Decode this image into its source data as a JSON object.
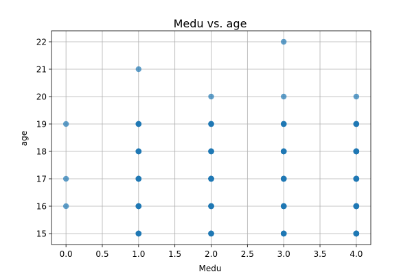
{
  "chart_data": {
    "type": "scatter",
    "title": "Medu vs. age",
    "xlabel": "Medu",
    "ylabel": "age",
    "xlim": [
      -0.2,
      4.2
    ],
    "ylim": [
      14.6,
      22.4
    ],
    "xticks": [
      0.0,
      0.5,
      1.0,
      1.5,
      2.0,
      2.5,
      3.0,
      3.5,
      4.0
    ],
    "xtick_labels": [
      "0.0",
      "0.5",
      "1.0",
      "1.5",
      "2.0",
      "2.5",
      "3.0",
      "3.5",
      "4.0"
    ],
    "yticks": [
      15,
      16,
      17,
      18,
      19,
      20,
      21,
      22
    ],
    "ytick_labels": [
      "15",
      "16",
      "17",
      "18",
      "19",
      "20",
      "21",
      "22"
    ],
    "grid": true,
    "marker_color": "#1f77b4",
    "marker_alpha": 0.7,
    "points": [
      {
        "x": 0,
        "y": 16,
        "n": 1
      },
      {
        "x": 0,
        "y": 17,
        "n": 1
      },
      {
        "x": 0,
        "y": 19,
        "n": 1
      },
      {
        "x": 1,
        "y": 15,
        "n": 8
      },
      {
        "x": 1,
        "y": 16,
        "n": 10
      },
      {
        "x": 1,
        "y": 17,
        "n": 10
      },
      {
        "x": 1,
        "y": 18,
        "n": 10
      },
      {
        "x": 1,
        "y": 19,
        "n": 6
      },
      {
        "x": 1,
        "y": 21,
        "n": 1
      },
      {
        "x": 2,
        "y": 15,
        "n": 10
      },
      {
        "x": 2,
        "y": 16,
        "n": 12
      },
      {
        "x": 2,
        "y": 17,
        "n": 12
      },
      {
        "x": 2,
        "y": 18,
        "n": 10
      },
      {
        "x": 2,
        "y": 19,
        "n": 6
      },
      {
        "x": 2,
        "y": 20,
        "n": 1
      },
      {
        "x": 3,
        "y": 15,
        "n": 10
      },
      {
        "x": 3,
        "y": 16,
        "n": 12
      },
      {
        "x": 3,
        "y": 17,
        "n": 12
      },
      {
        "x": 3,
        "y": 18,
        "n": 10
      },
      {
        "x": 3,
        "y": 19,
        "n": 6
      },
      {
        "x": 3,
        "y": 20,
        "n": 1
      },
      {
        "x": 3,
        "y": 22,
        "n": 1
      },
      {
        "x": 4,
        "y": 15,
        "n": 20
      },
      {
        "x": 4,
        "y": 16,
        "n": 20
      },
      {
        "x": 4,
        "y": 17,
        "n": 20
      },
      {
        "x": 4,
        "y": 18,
        "n": 20
      },
      {
        "x": 4,
        "y": 19,
        "n": 8
      },
      {
        "x": 4,
        "y": 20,
        "n": 1
      }
    ]
  }
}
